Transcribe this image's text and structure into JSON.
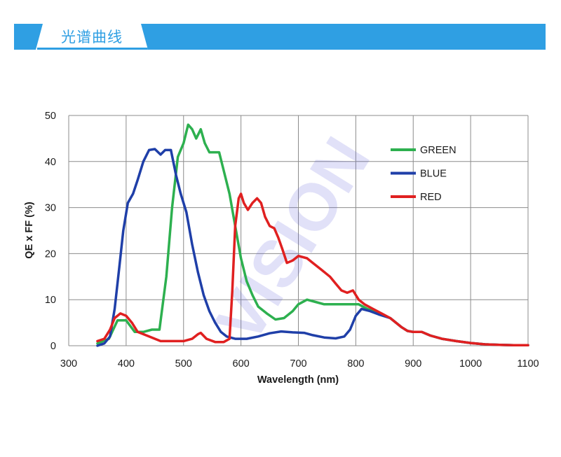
{
  "header": {
    "title": "光谱曲线"
  },
  "watermark": {
    "text": "VISION",
    "color": "#5b5bd6"
  },
  "chart_data": {
    "type": "line",
    "xlabel": "Wavelength (nm)",
    "ylabel": "QE x FF (%)",
    "xlim": [
      300,
      1100
    ],
    "ylim": [
      0,
      50
    ],
    "xticks": [
      300,
      400,
      500,
      600,
      700,
      800,
      900,
      1000,
      1100
    ],
    "yticks": [
      0,
      10,
      20,
      30,
      40,
      50
    ],
    "grid": true,
    "legend_position": "top-right",
    "series": [
      {
        "name": "GREEN",
        "color": "#2db04f",
        "points": [
          [
            350,
            0.5
          ],
          [
            370,
            1.5
          ],
          [
            385,
            5.5
          ],
          [
            400,
            5.5
          ],
          [
            415,
            3
          ],
          [
            430,
            3
          ],
          [
            445,
            3.5
          ],
          [
            458,
            3.5
          ],
          [
            470,
            15
          ],
          [
            480,
            30
          ],
          [
            490,
            41
          ],
          [
            500,
            44
          ],
          [
            508,
            48
          ],
          [
            515,
            47
          ],
          [
            522,
            45
          ],
          [
            530,
            47
          ],
          [
            537,
            44
          ],
          [
            545,
            42
          ],
          [
            555,
            42
          ],
          [
            562,
            42
          ],
          [
            570,
            38
          ],
          [
            580,
            33
          ],
          [
            590,
            26
          ],
          [
            600,
            19
          ],
          [
            610,
            14
          ],
          [
            620,
            11
          ],
          [
            630,
            8.5
          ],
          [
            645,
            7
          ],
          [
            660,
            5.7
          ],
          [
            675,
            6
          ],
          [
            690,
            7.5
          ],
          [
            700,
            9
          ],
          [
            715,
            10
          ],
          [
            730,
            9.5
          ],
          [
            745,
            9
          ],
          [
            760,
            9
          ],
          [
            775,
            9
          ],
          [
            790,
            9
          ],
          [
            805,
            9
          ],
          [
            820,
            8
          ],
          [
            840,
            7
          ],
          [
            860,
            6
          ],
          [
            870,
            5
          ],
          [
            880,
            4
          ],
          [
            890,
            3.2
          ],
          [
            900,
            3
          ],
          [
            915,
            3
          ],
          [
            930,
            2.2
          ],
          [
            950,
            1.5
          ],
          [
            975,
            1
          ],
          [
            1000,
            0.6
          ],
          [
            1025,
            0.3
          ],
          [
            1050,
            0.2
          ],
          [
            1075,
            0.1
          ],
          [
            1100,
            0.1
          ]
        ]
      },
      {
        "name": "BLUE",
        "color": "#1f3fa8",
        "points": [
          [
            350,
            0
          ],
          [
            362,
            0.5
          ],
          [
            372,
            2
          ],
          [
            380,
            8
          ],
          [
            388,
            17
          ],
          [
            395,
            25
          ],
          [
            403,
            31
          ],
          [
            412,
            33
          ],
          [
            420,
            36
          ],
          [
            430,
            40
          ],
          [
            440,
            42.5
          ],
          [
            450,
            42.7
          ],
          [
            460,
            41.5
          ],
          [
            468,
            42.5
          ],
          [
            478,
            42.5
          ],
          [
            487,
            37
          ],
          [
            495,
            33
          ],
          [
            505,
            29
          ],
          [
            515,
            22
          ],
          [
            525,
            16
          ],
          [
            535,
            11
          ],
          [
            545,
            7.5
          ],
          [
            555,
            5
          ],
          [
            565,
            3
          ],
          [
            575,
            2
          ],
          [
            590,
            1.5
          ],
          [
            610,
            1.5
          ],
          [
            630,
            2
          ],
          [
            650,
            2.7
          ],
          [
            670,
            3.1
          ],
          [
            690,
            2.9
          ],
          [
            710,
            2.8
          ],
          [
            725,
            2.3
          ],
          [
            745,
            1.8
          ],
          [
            765,
            1.6
          ],
          [
            780,
            2
          ],
          [
            790,
            3.5
          ],
          [
            800,
            6.5
          ],
          [
            810,
            8
          ],
          [
            825,
            7.5
          ],
          [
            840,
            6.8
          ],
          [
            860,
            6
          ],
          [
            870,
            5
          ],
          [
            880,
            4
          ],
          [
            890,
            3.2
          ],
          [
            900,
            3
          ],
          [
            915,
            3
          ],
          [
            930,
            2.2
          ],
          [
            950,
            1.5
          ],
          [
            975,
            1
          ],
          [
            1000,
            0.6
          ],
          [
            1025,
            0.3
          ],
          [
            1050,
            0.2
          ],
          [
            1075,
            0.1
          ],
          [
            1100,
            0.1
          ]
        ]
      },
      {
        "name": "RED",
        "color": "#e02020",
        "points": [
          [
            350,
            1
          ],
          [
            362,
            1.5
          ],
          [
            372,
            3.5
          ],
          [
            380,
            6
          ],
          [
            390,
            7
          ],
          [
            400,
            6.5
          ],
          [
            410,
            5
          ],
          [
            420,
            3
          ],
          [
            440,
            2
          ],
          [
            460,
            1
          ],
          [
            480,
            1
          ],
          [
            500,
            1
          ],
          [
            515,
            1.5
          ],
          [
            525,
            2.5
          ],
          [
            530,
            2.8
          ],
          [
            540,
            1.5
          ],
          [
            555,
            0.8
          ],
          [
            570,
            0.8
          ],
          [
            580,
            1.5
          ],
          [
            585,
            12
          ],
          [
            590,
            26
          ],
          [
            596,
            32
          ],
          [
            600,
            33
          ],
          [
            605,
            31
          ],
          [
            612,
            29.5
          ],
          [
            620,
            31
          ],
          [
            628,
            32
          ],
          [
            635,
            31
          ],
          [
            642,
            28
          ],
          [
            650,
            26
          ],
          [
            658,
            25.5
          ],
          [
            665,
            23.5
          ],
          [
            672,
            21
          ],
          [
            680,
            18
          ],
          [
            690,
            18.5
          ],
          [
            700,
            19.5
          ],
          [
            715,
            19
          ],
          [
            725,
            18
          ],
          [
            740,
            16.5
          ],
          [
            755,
            15
          ],
          [
            765,
            13.5
          ],
          [
            775,
            12
          ],
          [
            785,
            11.5
          ],
          [
            795,
            12
          ],
          [
            805,
            10
          ],
          [
            815,
            9
          ],
          [
            830,
            8
          ],
          [
            845,
            7
          ],
          [
            860,
            6
          ],
          [
            870,
            5
          ],
          [
            880,
            4
          ],
          [
            890,
            3.2
          ],
          [
            900,
            3
          ],
          [
            915,
            3
          ],
          [
            930,
            2.2
          ],
          [
            950,
            1.5
          ],
          [
            975,
            1
          ],
          [
            1000,
            0.6
          ],
          [
            1025,
            0.3
          ],
          [
            1050,
            0.2
          ],
          [
            1075,
            0.1
          ],
          [
            1100,
            0.1
          ]
        ]
      }
    ]
  }
}
